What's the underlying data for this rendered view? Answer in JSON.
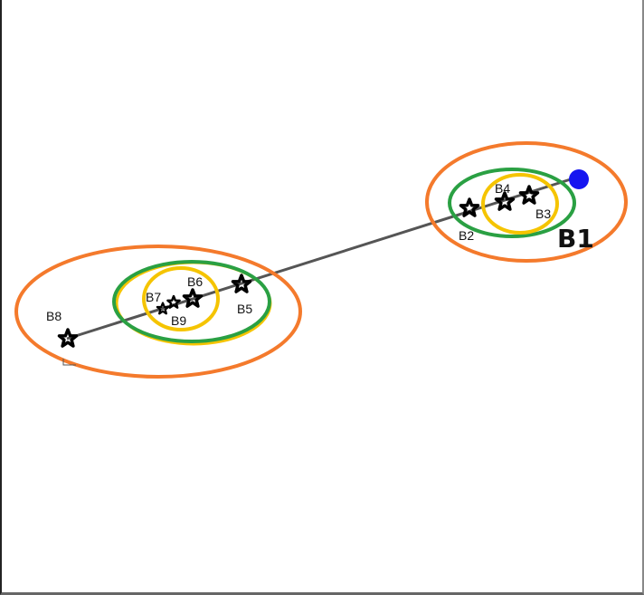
{
  "colors": {
    "outer_ellipse": "#f47a2c",
    "middle_ellipse": "#2aa043",
    "inner_ellipse": "#f5c400",
    "line": "#555555",
    "star": "#000000",
    "dot": "#1515f0"
  },
  "labels": {
    "b1": "B1",
    "b2": "B2",
    "b3": "B3",
    "b4": "B4",
    "b5": "B5",
    "b6": "B6",
    "b7": "B7",
    "b8": "B8",
    "b9": "B9"
  },
  "icons": {
    "star": "star-icon",
    "dot": "dot-icon"
  }
}
